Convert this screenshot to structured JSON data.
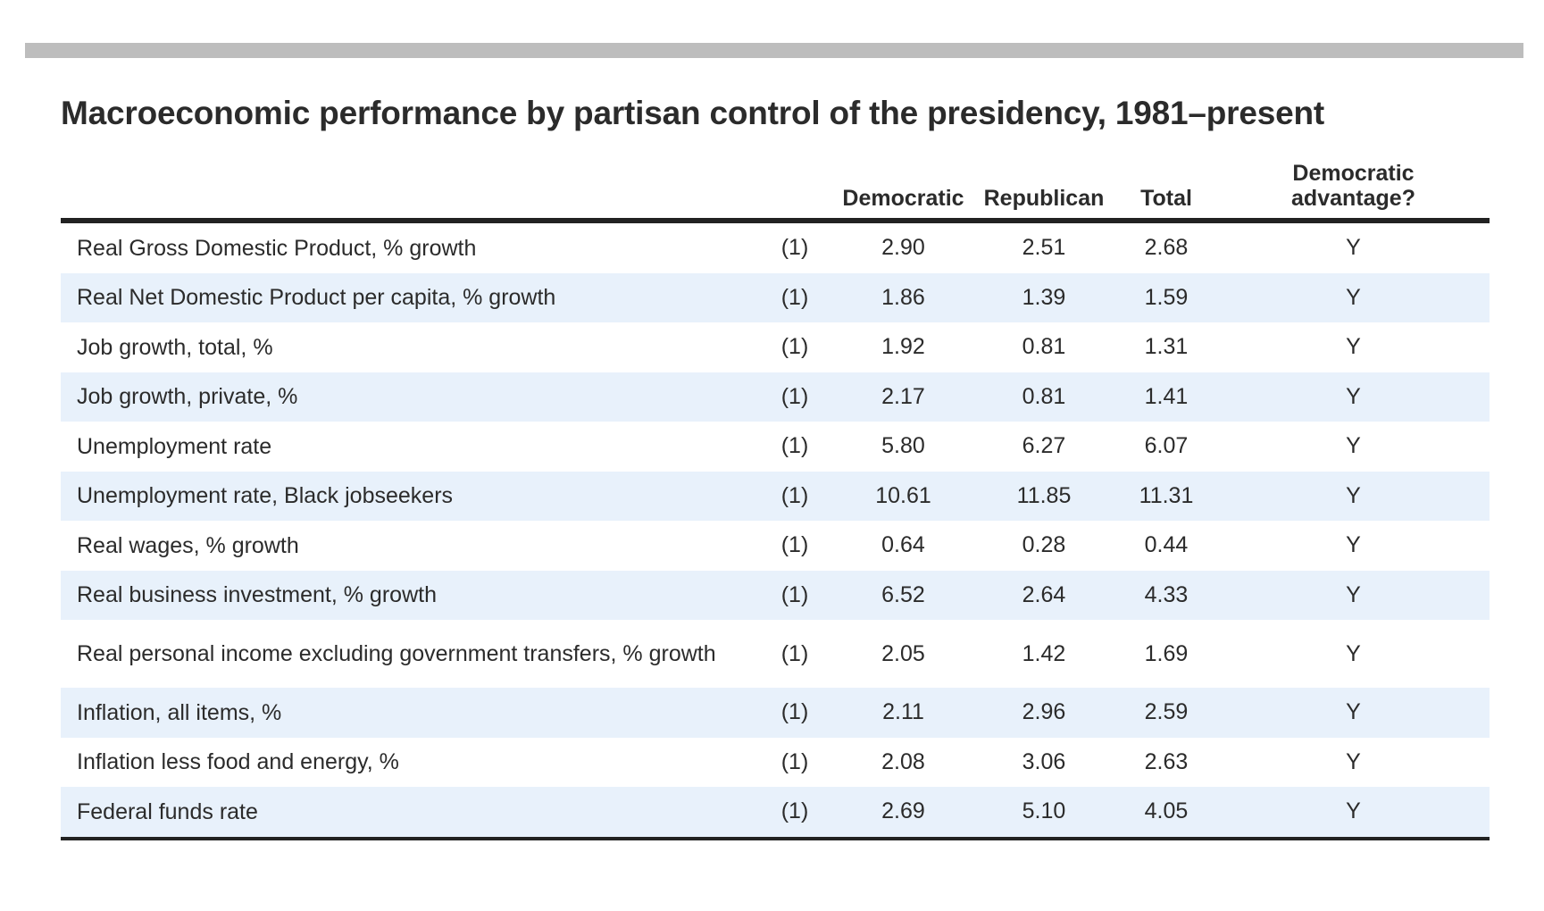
{
  "title": "Macroeconomic performance by partisan control of the presidency, 1981–present",
  "chart_data": {
    "type": "table",
    "title": "Macroeconomic performance by partisan control of the presidency, 1981–present",
    "columns": [
      "",
      "",
      "Democratic",
      "Republican",
      "Total",
      "Democratic advantage?"
    ],
    "header": {
      "democratic": "Democratic",
      "republican": "Republican",
      "total": "Total",
      "advantage_line1": "Democratic",
      "advantage_line2": "advantage?"
    },
    "rows": [
      {
        "label": "Real Gross Domestic Product, % growth",
        "note": "(1)",
        "democratic": "2.90",
        "republican": "2.51",
        "total": "2.68",
        "advantage": "Y"
      },
      {
        "label": "Real Net Domestic Product per capita, % growth",
        "note": "(1)",
        "democratic": "1.86",
        "republican": "1.39",
        "total": "1.59",
        "advantage": "Y"
      },
      {
        "label": "Job growth, total, %",
        "note": "(1)",
        "democratic": "1.92",
        "republican": "0.81",
        "total": "1.31",
        "advantage": "Y"
      },
      {
        "label": "Job growth, private, %",
        "note": "(1)",
        "democratic": "2.17",
        "republican": "0.81",
        "total": "1.41",
        "advantage": "Y"
      },
      {
        "label": "Unemployment rate",
        "note": "(1)",
        "democratic": "5.80",
        "republican": "6.27",
        "total": "6.07",
        "advantage": "Y"
      },
      {
        "label": "Unemployment rate, Black jobseekers",
        "note": "(1)",
        "democratic": "10.61",
        "republican": "11.85",
        "total": "11.31",
        "advantage": "Y"
      },
      {
        "label": "Real wages, % growth",
        "note": "(1)",
        "democratic": "0.64",
        "republican": "0.28",
        "total": "0.44",
        "advantage": "Y"
      },
      {
        "label": "Real business investment, % growth",
        "note": "(1)",
        "democratic": "6.52",
        "republican": "2.64",
        "total": "4.33",
        "advantage": "Y"
      },
      {
        "label": "Real personal income excluding government transfers, % growth",
        "note": "(1)",
        "democratic": "2.05",
        "republican": "1.42",
        "total": "1.69",
        "advantage": "Y"
      },
      {
        "label": "Inflation, all items, %",
        "note": "(1)",
        "democratic": "2.11",
        "republican": "2.96",
        "total": "2.59",
        "advantage": "Y"
      },
      {
        "label": "Inflation less food and energy, %",
        "note": "(1)",
        "democratic": "2.08",
        "republican": "3.06",
        "total": "2.63",
        "advantage": "Y"
      },
      {
        "label": "Federal funds rate",
        "note": "(1)",
        "democratic": "2.69",
        "republican": "5.10",
        "total": "4.05",
        "advantage": "Y"
      }
    ]
  }
}
